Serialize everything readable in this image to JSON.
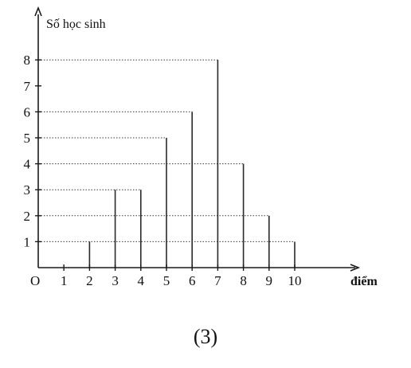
{
  "chart_data": {
    "type": "bar",
    "ylabel": "Số học sinh",
    "xlabel": "điểm",
    "origin_label": "O",
    "x_ticks": [
      "1",
      "2",
      "3",
      "4",
      "5",
      "6",
      "7",
      "8",
      "9",
      "10"
    ],
    "y_ticks": [
      "1",
      "2",
      "3",
      "4",
      "5",
      "6",
      "7",
      "8"
    ],
    "x": [
      2,
      3,
      4,
      5,
      6,
      7,
      8,
      9,
      10
    ],
    "values": [
      1,
      3,
      3,
      5,
      6,
      8,
      4,
      2,
      1
    ],
    "xlim": [
      0,
      10
    ],
    "ylim": [
      0,
      8
    ],
    "grid": false,
    "colors": {
      "ink": "#1a1a1a"
    }
  },
  "caption": "(3)"
}
